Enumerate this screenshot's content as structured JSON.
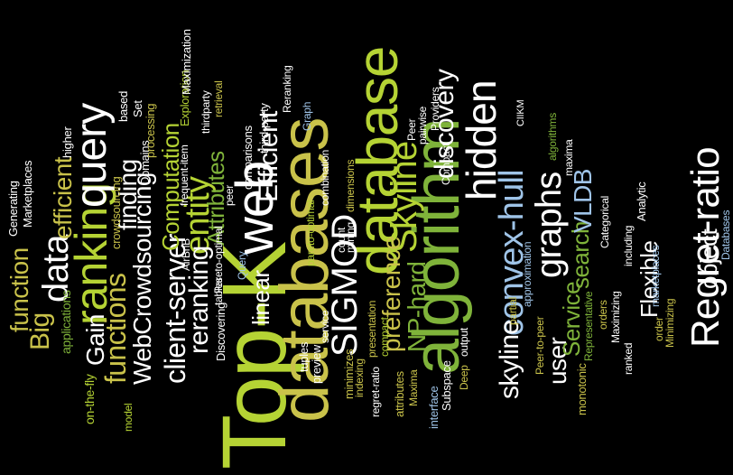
{
  "colors": {
    "background": "#000000",
    "lime": "#b5d334",
    "green": "#7fb33a",
    "olive": "#c9c24a",
    "white": "#ffffff",
    "light_blue": "#9fc4e8"
  },
  "words": [
    {
      "id": "top-k",
      "text": "Top-K",
      "color": "lime"
    },
    {
      "id": "databases-big",
      "text": "databases",
      "color": "olive"
    },
    {
      "id": "database",
      "text": "database",
      "color": "lime"
    },
    {
      "id": "algorithm",
      "text": "algorithm",
      "color": "green"
    },
    {
      "id": "web",
      "text": "web",
      "color": "white"
    },
    {
      "id": "ranking",
      "text": "ranking",
      "color": "lime"
    },
    {
      "id": "query",
      "text": "query",
      "color": "white"
    },
    {
      "id": "data",
      "text": "data",
      "color": "white"
    },
    {
      "id": "hidden",
      "text": "hidden",
      "color": "white"
    },
    {
      "id": "regret-ratio",
      "text": "Regret-ratio",
      "color": "white"
    },
    {
      "id": "convex-hull",
      "text": "convex-hull",
      "color": "light_blue"
    },
    {
      "id": "skyline-cap",
      "text": "Skyline",
      "color": "lime"
    },
    {
      "id": "np-hard",
      "text": "NP-hard",
      "color": "green"
    },
    {
      "id": "sigmod",
      "text": "SIGMOD",
      "color": "white"
    },
    {
      "id": "graphs",
      "text": "graphs",
      "color": "white"
    },
    {
      "id": "discovery",
      "text": "discovery",
      "color": "white"
    },
    {
      "id": "entity",
      "text": "entity",
      "color": "lime"
    },
    {
      "id": "efficient-1",
      "text": "efficient",
      "color": "olive"
    },
    {
      "id": "efficient-2",
      "text": "Efficient",
      "color": "white"
    },
    {
      "id": "function",
      "text": "function",
      "color": "olive"
    },
    {
      "id": "functions",
      "text": "functions",
      "color": "olive"
    },
    {
      "id": "big",
      "text": "Big",
      "color": "olive"
    },
    {
      "id": "gain",
      "text": "Gain",
      "color": "white"
    },
    {
      "id": "webcrowdsourcing",
      "text": "WebCrowdsourcing",
      "color": "white"
    },
    {
      "id": "client-server",
      "text": "client-server",
      "color": "white"
    },
    {
      "id": "reranking",
      "text": "reranking",
      "color": "white"
    },
    {
      "id": "computation",
      "text": "Computation",
      "color": "lime"
    },
    {
      "id": "attributes",
      "text": "Attributes",
      "color": "green"
    },
    {
      "id": "finding",
      "text": "finding",
      "color": "white"
    },
    {
      "id": "linear",
      "text": "linear",
      "color": "white"
    },
    {
      "id": "preference",
      "text": "preference",
      "color": "olive"
    },
    {
      "id": "skyline",
      "text": "skyline",
      "color": "white"
    },
    {
      "id": "user",
      "text": "user",
      "color": "white"
    },
    {
      "id": "service",
      "text": "Service",
      "color": "green"
    },
    {
      "id": "search",
      "text": "search",
      "color": "green"
    },
    {
      "id": "vldb",
      "text": "VLDB",
      "color": "light_blue"
    },
    {
      "id": "flexible",
      "text": "Flexible",
      "color": "white"
    },
    {
      "id": "object",
      "text": "object",
      "color": "white"
    },
    {
      "id": "on-the-fly",
      "text": "on-the-fly",
      "color": "lime"
    },
    {
      "id": "applications",
      "text": "applications",
      "color": "green"
    },
    {
      "id": "generating",
      "text": "Generating",
      "color": "white"
    },
    {
      "id": "marketplaces-1",
      "text": "Marketplaces",
      "color": "white"
    },
    {
      "id": "higher",
      "text": "higher",
      "color": "white"
    },
    {
      "id": "model",
      "text": "model",
      "color": "lime"
    },
    {
      "id": "crowdsourcing",
      "text": "crowdsourcing",
      "color": "olive"
    },
    {
      "id": "domains",
      "text": "Domains",
      "color": "white"
    },
    {
      "id": "based",
      "text": "based",
      "color": "white"
    },
    {
      "id": "set",
      "text": "Set",
      "color": "white"
    },
    {
      "id": "processing",
      "text": "processing",
      "color": "olive"
    },
    {
      "id": "exploration",
      "text": "Exploration",
      "color": "lime"
    },
    {
      "id": "maximization",
      "text": "Maximization",
      "color": "white"
    },
    {
      "id": "airbnb",
      "text": "AirBnB",
      "color": "white"
    },
    {
      "id": "frequent-item",
      "text": "frequent-item",
      "color": "white"
    },
    {
      "id": "thirdparty",
      "text": "thirdparty",
      "color": "white"
    },
    {
      "id": "retrieval",
      "text": "retrieval",
      "color": "olive"
    },
    {
      "id": "discovering",
      "text": "Discovering",
      "color": "white"
    },
    {
      "id": "tables",
      "text": "tables",
      "color": "white"
    },
    {
      "id": "pareto-optimal-1",
      "text": "Pareto-optimal",
      "color": "white"
    },
    {
      "id": "peer-small",
      "text": "peer",
      "color": "white"
    },
    {
      "id": "third-party",
      "text": "third-party",
      "color": "white"
    },
    {
      "id": "comparisons",
      "text": "comparisons",
      "color": "white"
    },
    {
      "id": "reranking-2",
      "text": "Reranking",
      "color": "white"
    },
    {
      "id": "graph",
      "text": "Graph",
      "color": "light_blue"
    },
    {
      "id": "query-small",
      "text": "Query",
      "color": "light_blue"
    },
    {
      "id": "tuples",
      "text": "tuples",
      "color": "white"
    },
    {
      "id": "preview",
      "text": "preview",
      "color": "white"
    },
    {
      "id": "service-small",
      "text": "service",
      "color": "white"
    },
    {
      "id": "pareto-optimal-2",
      "text": "pareto-optimal",
      "color": "lime"
    },
    {
      "id": "combination",
      "text": "combination",
      "color": "white"
    },
    {
      "id": "count",
      "text": "count",
      "color": "white"
    },
    {
      "id": "mining",
      "text": "mining",
      "color": "white"
    },
    {
      "id": "dimensions",
      "text": "dimensions",
      "color": "olive"
    },
    {
      "id": "minimizes",
      "text": "minimizes",
      "color": "olive"
    },
    {
      "id": "presentation",
      "text": "presentation",
      "color": "olive"
    },
    {
      "id": "indexing",
      "text": "indexing",
      "color": "olive"
    },
    {
      "id": "compact-1",
      "text": "compact",
      "color": "lime"
    },
    {
      "id": "regret-ratio-small",
      "text": "regret-ratio",
      "color": "white"
    },
    {
      "id": "attributes-small",
      "text": "attributes",
      "color": "olive"
    },
    {
      "id": "maxima-cap",
      "text": "Maxima",
      "color": "olive"
    },
    {
      "id": "interface",
      "text": "interface",
      "color": "light_blue"
    },
    {
      "id": "subspace",
      "text": "Subspace",
      "color": "white"
    },
    {
      "id": "deep",
      "text": "Deep",
      "color": "olive"
    },
    {
      "id": "output",
      "text": "output",
      "color": "white"
    },
    {
      "id": "peer",
      "text": "Peer",
      "color": "white"
    },
    {
      "id": "pairwise",
      "text": "pairwise",
      "color": "white"
    },
    {
      "id": "compact-2",
      "text": "Compact",
      "color": "white"
    },
    {
      "id": "providers",
      "text": "Providers",
      "color": "white"
    },
    {
      "id": "partial",
      "text": "partial",
      "color": "olive"
    },
    {
      "id": "approximation",
      "text": "approximation",
      "color": "light_blue"
    },
    {
      "id": "peer-to-peer",
      "text": "Peer-to-peer",
      "color": "olive"
    },
    {
      "id": "ciikm",
      "text": "CIIKM",
      "color": "white"
    },
    {
      "id": "algorithms",
      "text": "algorithms",
      "color": "green"
    },
    {
      "id": "maxima",
      "text": "maxima",
      "color": "white"
    },
    {
      "id": "representative",
      "text": "Representative",
      "color": "green"
    },
    {
      "id": "monotonic",
      "text": "monotonic",
      "color": "olive"
    },
    {
      "id": "orders",
      "text": "orders",
      "color": "olive"
    },
    {
      "id": "categorical",
      "text": "Categorical",
      "color": "white"
    },
    {
      "id": "maximizing",
      "text": "Maximizing",
      "color": "white"
    },
    {
      "id": "ranked",
      "text": "ranked",
      "color": "white"
    },
    {
      "id": "including",
      "text": "including",
      "color": "white"
    },
    {
      "id": "analytic",
      "text": "Analytic",
      "color": "white"
    },
    {
      "id": "marketplaces-2",
      "text": "marketplaces",
      "color": "light_blue"
    },
    {
      "id": "order",
      "text": "order",
      "color": "olive"
    },
    {
      "id": "minimizing",
      "text": "Minimizing",
      "color": "olive"
    },
    {
      "id": "databases-small",
      "text": "Databases",
      "color": "light_blue"
    }
  ]
}
